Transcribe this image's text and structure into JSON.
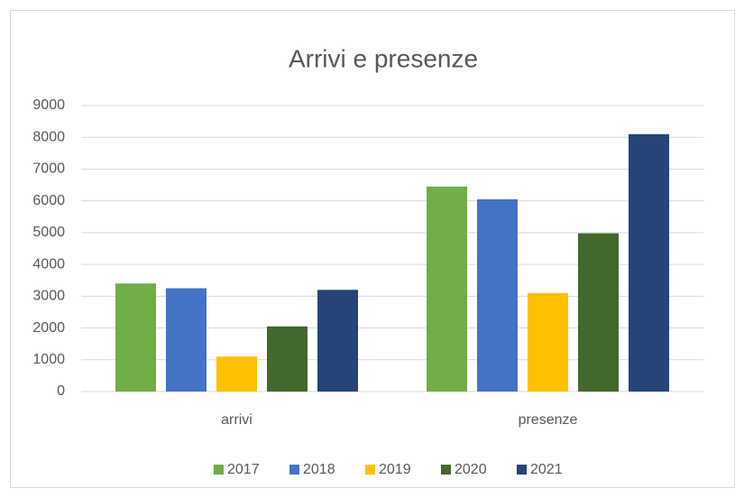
{
  "chart_data": {
    "type": "bar",
    "title": "Arrivi e presenze",
    "categories": [
      "arrivi",
      "presenze"
    ],
    "series": [
      {
        "name": "2017",
        "color": "#70ad47",
        "values": [
          3400,
          6450
        ]
      },
      {
        "name": "2018",
        "color": "#4472c4",
        "values": [
          3250,
          6050
        ]
      },
      {
        "name": "2019",
        "color": "#ffc000",
        "values": [
          1100,
          3100
        ]
      },
      {
        "name": "2020",
        "color": "#43682b",
        "values": [
          2050,
          4980
        ]
      },
      {
        "name": "2021",
        "color": "#264478",
        "values": [
          3200,
          8100
        ]
      }
    ],
    "ylim": [
      0,
      9000
    ],
    "yticks": [
      0,
      1000,
      2000,
      3000,
      4000,
      5000,
      6000,
      7000,
      8000,
      9000
    ],
    "grid": true,
    "legend": "bottom"
  }
}
